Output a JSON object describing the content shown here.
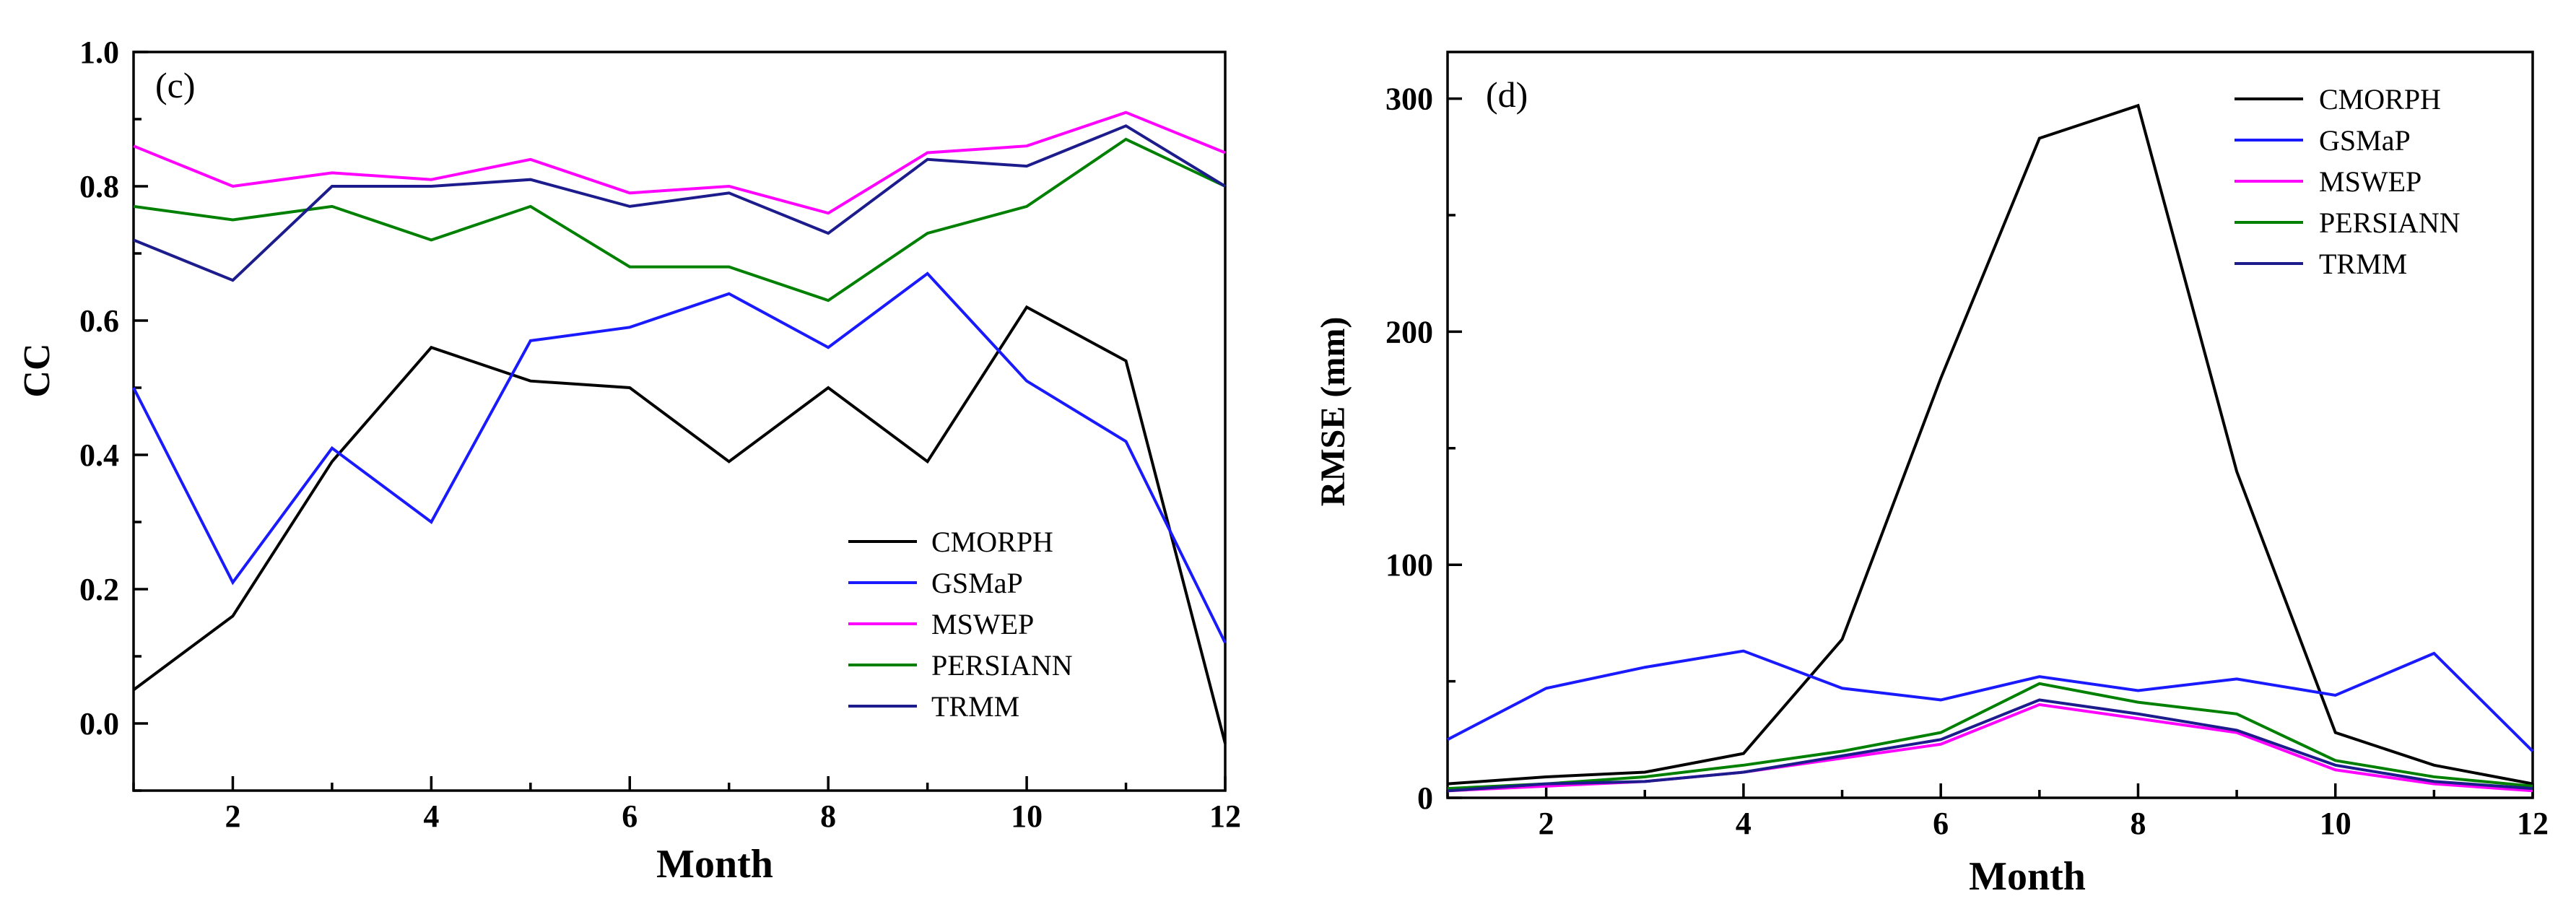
{
  "colors": {
    "CMORPH": "#000000",
    "GSMaP": "#1a1aff",
    "MSWEP": "#ff00ff",
    "PERSIANN": "#008000",
    "TRMM": "#1c1c8c"
  },
  "chart_data": [
    {
      "type": "line",
      "panel_label": "(c)",
      "title": "",
      "xlabel": "Month",
      "ylabel": "CC",
      "xlim": [
        1,
        12
      ],
      "ylim": [
        -0.1,
        1.0
      ],
      "xticks": [
        2,
        4,
        6,
        8,
        10,
        12
      ],
      "xtick_labels": [
        "2",
        "4",
        "6",
        "8",
        "10",
        "12"
      ],
      "yticks": [
        0.0,
        0.2,
        0.4,
        0.6,
        0.8,
        1.0
      ],
      "ytick_labels": [
        "0.0",
        "0.2",
        "0.4",
        "0.6",
        "0.8",
        "1.0"
      ],
      "legend_position": "lower-right",
      "x": [
        1,
        2,
        3,
        4,
        5,
        6,
        7,
        8,
        9,
        10,
        11,
        12
      ],
      "series": [
        {
          "name": "CMORPH",
          "values": [
            0.05,
            0.16,
            0.39,
            0.56,
            0.51,
            0.5,
            0.39,
            0.5,
            0.39,
            0.62,
            0.54,
            -0.03
          ]
        },
        {
          "name": "GSMaP",
          "values": [
            0.5,
            0.21,
            0.41,
            0.3,
            0.57,
            0.59,
            0.64,
            0.56,
            0.67,
            0.51,
            0.42,
            0.12
          ]
        },
        {
          "name": "MSWEP",
          "values": [
            0.86,
            0.8,
            0.82,
            0.81,
            0.84,
            0.79,
            0.8,
            0.76,
            0.85,
            0.86,
            0.91,
            0.85
          ]
        },
        {
          "name": "PERSIANN",
          "values": [
            0.77,
            0.75,
            0.77,
            0.72,
            0.77,
            0.68,
            0.68,
            0.63,
            0.73,
            0.77,
            0.87,
            0.8
          ]
        },
        {
          "name": "TRMM",
          "values": [
            0.72,
            0.66,
            0.8,
            0.8,
            0.81,
            0.77,
            0.79,
            0.73,
            0.84,
            0.83,
            0.89,
            0.8
          ]
        }
      ]
    },
    {
      "type": "line",
      "panel_label": "(d)",
      "title": "",
      "xlabel": "Month",
      "ylabel": "RMSE (mm)",
      "xlim": [
        1,
        12
      ],
      "ylim": [
        0,
        320
      ],
      "xticks": [
        2,
        4,
        6,
        8,
        10,
        12
      ],
      "xtick_labels": [
        "2",
        "4",
        "6",
        "8",
        "10",
        "12"
      ],
      "yticks": [
        0,
        100,
        200,
        300
      ],
      "ytick_labels": [
        "0",
        "100",
        "200",
        "300"
      ],
      "legend_position": "top-right",
      "x": [
        1,
        2,
        3,
        4,
        5,
        6,
        7,
        8,
        9,
        10,
        11,
        12
      ],
      "series": [
        {
          "name": "CMORPH",
          "values": [
            6,
            9,
            11,
            19,
            68,
            180,
            283,
            297,
            140,
            28,
            14,
            6
          ]
        },
        {
          "name": "GSMaP",
          "values": [
            25,
            47,
            56,
            63,
            47,
            42,
            52,
            46,
            51,
            44,
            62,
            20
          ]
        },
        {
          "name": "MSWEP",
          "values": [
            3,
            5,
            7,
            11,
            17,
            23,
            40,
            34,
            28,
            12,
            6,
            3
          ]
        },
        {
          "name": "PERSIANN",
          "values": [
            4,
            6,
            9,
            14,
            20,
            28,
            49,
            41,
            36,
            16,
            9,
            5
          ]
        },
        {
          "name": "TRMM",
          "values": [
            3,
            6,
            7,
            11,
            18,
            25,
            42,
            36,
            29,
            14,
            7,
            4
          ]
        }
      ]
    }
  ]
}
